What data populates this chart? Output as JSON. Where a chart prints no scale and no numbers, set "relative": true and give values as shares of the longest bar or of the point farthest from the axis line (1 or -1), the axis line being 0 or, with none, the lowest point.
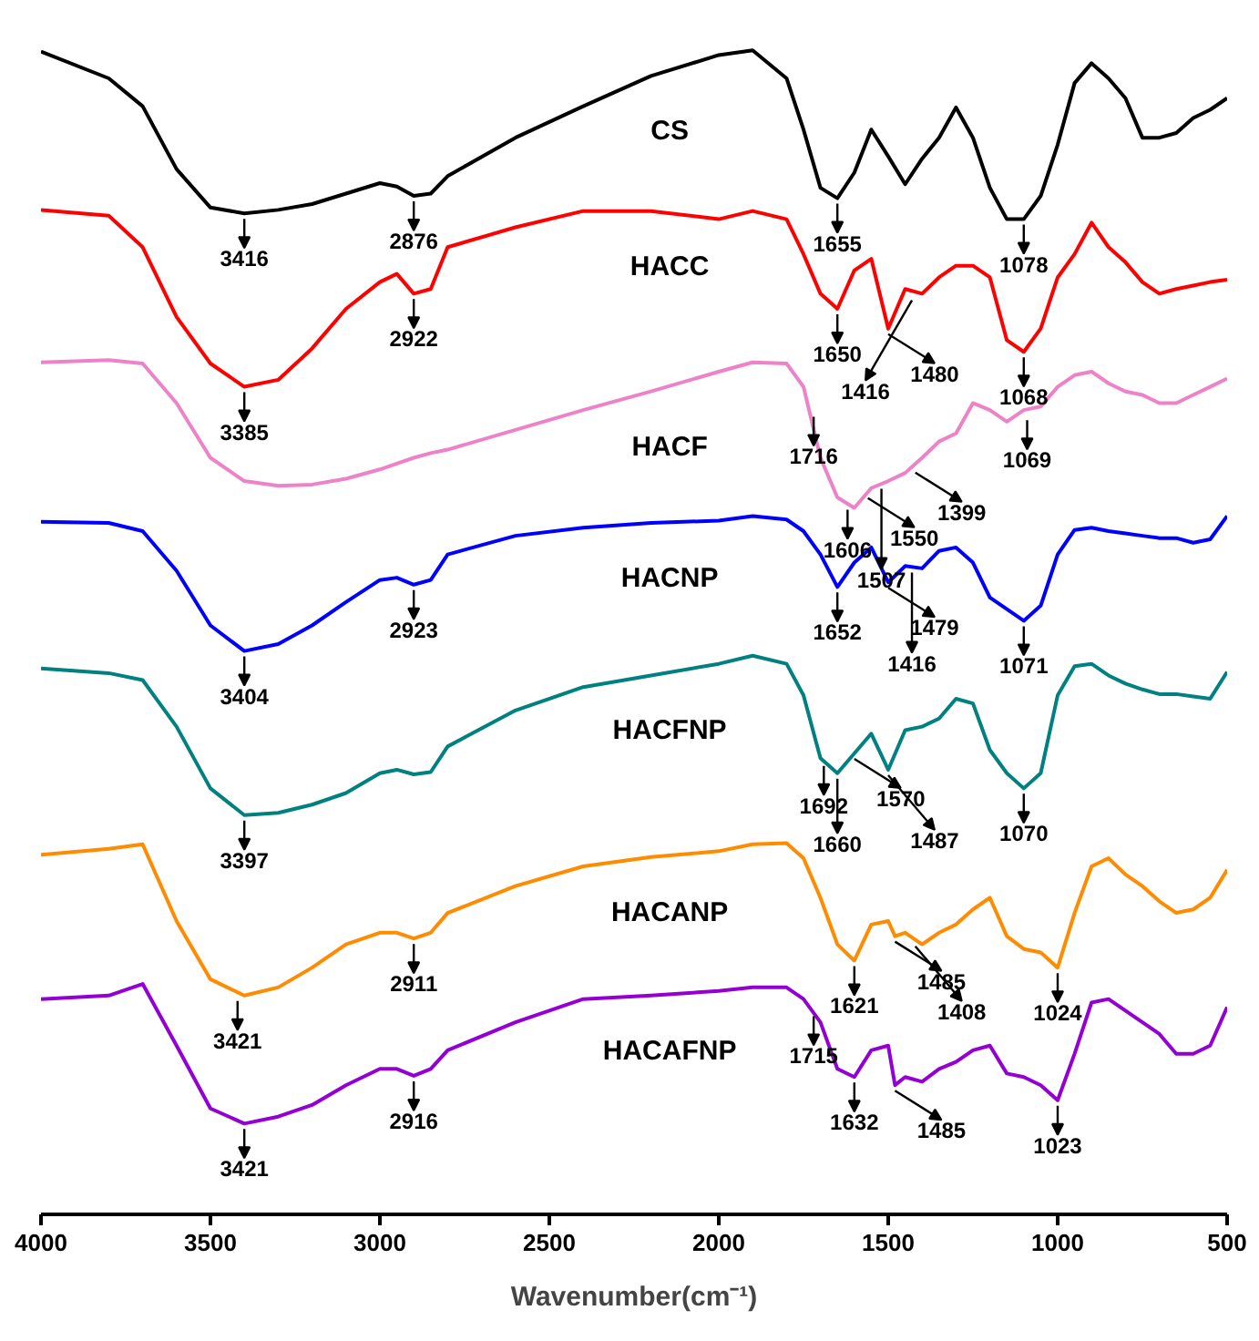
{
  "chart_data": {
    "type": "line",
    "relative": true,
    "xlabel": "Wavenumber(cm⁻¹)",
    "xlim": [
      4000,
      500
    ],
    "xticks": [
      4000,
      3500,
      3000,
      2500,
      2000,
      1500,
      1000,
      500
    ],
    "grid": false,
    "marker": "none",
    "line_style": "solid",
    "x": [
      4000,
      3800,
      3700,
      3600,
      3500,
      3400,
      3300,
      3200,
      3100,
      3000,
      2950,
      2900,
      2850,
      2800,
      2600,
      2400,
      2200,
      2000,
      1900,
      1800,
      1750,
      1700,
      1650,
      1600,
      1550,
      1500,
      1450,
      1400,
      1350,
      1300,
      1250,
      1200,
      1150,
      1100,
      1050,
      1000,
      950,
      900,
      850,
      800,
      750,
      700,
      650,
      600,
      550,
      500
    ],
    "series": [
      {
        "name": "CS",
        "color": "#000000",
        "values": [
          0.999,
          0.976,
          0.952,
          0.898,
          0.865,
          0.86,
          0.863,
          0.868,
          0.877,
          0.886,
          0.883,
          0.875,
          0.877,
          0.892,
          0.925,
          0.952,
          0.978,
          0.996,
          1.0,
          0.976,
          0.932,
          0.882,
          0.873,
          0.895,
          0.932,
          0.909,
          0.885,
          0.907,
          0.925,
          0.951,
          0.925,
          0.882,
          0.855,
          0.855,
          0.875,
          0.919,
          0.972,
          0.989,
          0.976,
          0.959,
          0.925,
          0.925,
          0.929,
          0.942,
          0.949,
          0.959
        ]
      },
      {
        "name": "HACC",
        "color": "#ff0000",
        "values": [
          0.863,
          0.858,
          0.831,
          0.771,
          0.731,
          0.711,
          0.717,
          0.744,
          0.778,
          0.801,
          0.808,
          0.791,
          0.795,
          0.831,
          0.848,
          0.862,
          0.862,
          0.855,
          0.862,
          0.855,
          0.825,
          0.791,
          0.778,
          0.811,
          0.821,
          0.761,
          0.795,
          0.791,
          0.805,
          0.815,
          0.815,
          0.805,
          0.751,
          0.741,
          0.761,
          0.805,
          0.825,
          0.852,
          0.831,
          0.818,
          0.801,
          0.791,
          0.795,
          0.798,
          0.801,
          0.803
        ]
      },
      {
        "name": "HACF",
        "color": "#ee82c8",
        "values": [
          0.732,
          0.734,
          0.731,
          0.697,
          0.65,
          0.63,
          0.626,
          0.627,
          0.632,
          0.64,
          0.645,
          0.65,
          0.654,
          0.657,
          0.674,
          0.691,
          0.707,
          0.724,
          0.732,
          0.731,
          0.711,
          0.65,
          0.616,
          0.607,
          0.624,
          0.63,
          0.637,
          0.65,
          0.664,
          0.671,
          0.697,
          0.691,
          0.681,
          0.691,
          0.694,
          0.711,
          0.721,
          0.724,
          0.714,
          0.707,
          0.704,
          0.697,
          0.697,
          0.704,
          0.711,
          0.718
        ]
      },
      {
        "name": "HACNP",
        "color": "#0000ff",
        "values": [
          0.595,
          0.594,
          0.587,
          0.553,
          0.506,
          0.484,
          0.49,
          0.506,
          0.526,
          0.545,
          0.547,
          0.541,
          0.545,
          0.567,
          0.583,
          0.59,
          0.594,
          0.596,
          0.6,
          0.597,
          0.587,
          0.567,
          0.539,
          0.56,
          0.573,
          0.543,
          0.557,
          0.555,
          0.57,
          0.573,
          0.56,
          0.53,
          0.52,
          0.51,
          0.523,
          0.567,
          0.588,
          0.59,
          0.587,
          0.585,
          0.583,
          0.581,
          0.581,
          0.577,
          0.58,
          0.6
        ]
      },
      {
        "name": "HACFNP",
        "color": "#008080",
        "values": [
          0.469,
          0.465,
          0.459,
          0.419,
          0.366,
          0.343,
          0.345,
          0.352,
          0.362,
          0.379,
          0.382,
          0.378,
          0.38,
          0.402,
          0.433,
          0.453,
          0.463,
          0.473,
          0.48,
          0.473,
          0.446,
          0.392,
          0.379,
          0.396,
          0.413,
          0.382,
          0.416,
          0.419,
          0.426,
          0.443,
          0.439,
          0.399,
          0.379,
          0.366,
          0.379,
          0.446,
          0.471,
          0.473,
          0.463,
          0.456,
          0.451,
          0.447,
          0.447,
          0.445,
          0.443,
          0.466
        ]
      },
      {
        "name": "HACANP",
        "color": "#ff8c00",
        "x": [
          4000,
          3800,
          3700,
          3600,
          3500,
          3400,
          3300,
          3200,
          3100,
          3000,
          2950,
          2900,
          2850,
          2800,
          2600,
          2400,
          2200,
          2000,
          1900,
          1800,
          1750,
          1700,
          1650,
          1600,
          1550,
          1500,
          1480,
          1450,
          1400,
          1350,
          1300,
          1250,
          1200,
          1150,
          1100,
          1050,
          1000,
          950,
          900,
          850,
          800,
          750,
          700,
          650,
          600,
          550,
          500
        ],
        "values": [
          0.309,
          0.314,
          0.318,
          0.252,
          0.202,
          0.188,
          0.195,
          0.212,
          0.232,
          0.242,
          0.242,
          0.237,
          0.242,
          0.259,
          0.282,
          0.299,
          0.307,
          0.312,
          0.318,
          0.319,
          0.306,
          0.272,
          0.232,
          0.218,
          0.249,
          0.252,
          0.239,
          0.242,
          0.232,
          0.242,
          0.249,
          0.262,
          0.272,
          0.239,
          0.228,
          0.225,
          0.212,
          0.259,
          0.299,
          0.306,
          0.292,
          0.282,
          0.269,
          0.259,
          0.262,
          0.272,
          0.296
        ]
      },
      {
        "name": "HACAFNP",
        "color": "#9400d3",
        "x": [
          4000,
          3800,
          3700,
          3600,
          3500,
          3400,
          3300,
          3200,
          3100,
          3000,
          2950,
          2900,
          2850,
          2800,
          2600,
          2400,
          2200,
          2000,
          1900,
          1800,
          1750,
          1700,
          1650,
          1600,
          1550,
          1500,
          1480,
          1450,
          1400,
          1350,
          1300,
          1250,
          1200,
          1150,
          1100,
          1050,
          1000,
          950,
          900,
          850,
          800,
          750,
          700,
          650,
          600,
          550,
          500
        ],
        "values": [
          0.185,
          0.188,
          0.198,
          0.145,
          0.091,
          0.078,
          0.084,
          0.094,
          0.111,
          0.125,
          0.125,
          0.119,
          0.125,
          0.141,
          0.165,
          0.185,
          0.188,
          0.192,
          0.195,
          0.195,
          0.185,
          0.165,
          0.125,
          0.118,
          0.141,
          0.145,
          0.111,
          0.118,
          0.114,
          0.125,
          0.131,
          0.141,
          0.145,
          0.121,
          0.118,
          0.111,
          0.098,
          0.138,
          0.182,
          0.185,
          0.175,
          0.165,
          0.155,
          0.138,
          0.138,
          0.145,
          0.178
        ]
      }
    ],
    "annotations": [
      {
        "text": "3416",
        "x": 3400,
        "y": 0.86
      },
      {
        "text": "2876",
        "x": 2900,
        "y": 0.875
      },
      {
        "text": "1655",
        "x": 1650,
        "y": 0.873
      },
      {
        "text": "1078",
        "x": 1100,
        "y": 0.855
      },
      {
        "text": "3385",
        "x": 3400,
        "y": 0.711
      },
      {
        "text": "2922",
        "x": 2900,
        "y": 0.791
      },
      {
        "text": "1650",
        "x": 1650,
        "y": 0.778
      },
      {
        "text": "1480",
        "x": 1500,
        "y": 0.761
      },
      {
        "text": "1416",
        "x": 1430,
        "y": 0.79
      },
      {
        "text": "1068",
        "x": 1100,
        "y": 0.741
      },
      {
        "text": "1716",
        "x": 1720,
        "y": 0.69
      },
      {
        "text": "1606",
        "x": 1620,
        "y": 0.61
      },
      {
        "text": "1550",
        "x": 1560,
        "y": 0.62
      },
      {
        "text": "1507",
        "x": 1520,
        "y": 0.628
      },
      {
        "text": "1399",
        "x": 1420,
        "y": 0.642
      },
      {
        "text": "1069",
        "x": 1090,
        "y": 0.687
      },
      {
        "text": "3404",
        "x": 3400,
        "y": 0.484
      },
      {
        "text": "2923",
        "x": 2900,
        "y": 0.541
      },
      {
        "text": "1652",
        "x": 1650,
        "y": 0.539
      },
      {
        "text": "1479",
        "x": 1500,
        "y": 0.543
      },
      {
        "text": "1416",
        "x": 1430,
        "y": 0.556
      },
      {
        "text": "1071",
        "x": 1100,
        "y": 0.51
      },
      {
        "text": "3397",
        "x": 3400,
        "y": 0.343
      },
      {
        "text": "1692",
        "x": 1690,
        "y": 0.39
      },
      {
        "text": "1660",
        "x": 1650,
        "y": 0.379
      },
      {
        "text": "1570",
        "x": 1600,
        "y": 0.396
      },
      {
        "text": "1487",
        "x": 1500,
        "y": 0.382
      },
      {
        "text": "1070",
        "x": 1100,
        "y": 0.366
      },
      {
        "text": "3421",
        "x": 3420,
        "y": 0.188
      },
      {
        "text": "2911",
        "x": 2900,
        "y": 0.237
      },
      {
        "text": "1621",
        "x": 1600,
        "y": 0.218
      },
      {
        "text": "1485",
        "x": 1480,
        "y": 0.239
      },
      {
        "text": "1408",
        "x": 1420,
        "y": 0.235
      },
      {
        "text": "1024",
        "x": 1000,
        "y": 0.212
      },
      {
        "text": "3421",
        "x": 3400,
        "y": 0.078
      },
      {
        "text": "2916",
        "x": 2900,
        "y": 0.119
      },
      {
        "text": "1715",
        "x": 1720,
        "y": 0.175
      },
      {
        "text": "1632",
        "x": 1600,
        "y": 0.118
      },
      {
        "text": "1485",
        "x": 1480,
        "y": 0.111
      },
      {
        "text": "1023",
        "x": 1000,
        "y": 0.098
      }
    ]
  }
}
